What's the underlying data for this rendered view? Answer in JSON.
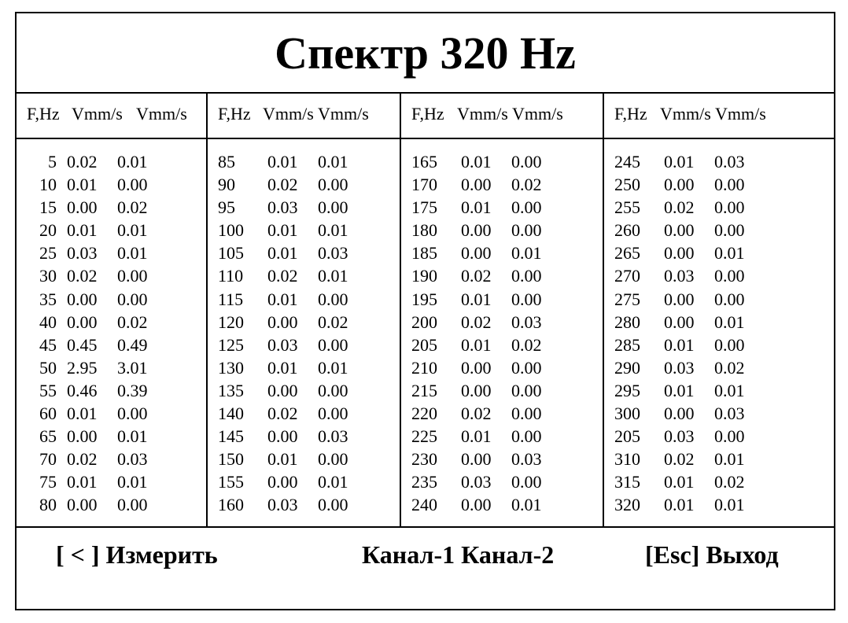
{
  "title": "Спектр 320 Hz",
  "columns": [
    {
      "header": [
        "F,Hz",
        "Vmm/s",
        "Vmm/s"
      ],
      "rows": [
        [
          "5",
          "0.02",
          "0.01"
        ],
        [
          "10",
          "0.01",
          "0.00"
        ],
        [
          "15",
          "0.00",
          "0.02"
        ],
        [
          "20",
          "0.01",
          "0.01"
        ],
        [
          "25",
          "0.03",
          "0.01"
        ],
        [
          "30",
          "0.02",
          "0.00"
        ],
        [
          "35",
          "0.00",
          "0.00"
        ],
        [
          "40",
          "0.00",
          "0.02"
        ],
        [
          "45",
          "0.45",
          "0.49"
        ],
        [
          "50",
          "2.95",
          "3.01"
        ],
        [
          "55",
          "0.46",
          "0.39"
        ],
        [
          "60",
          "0.01",
          "0.00"
        ],
        [
          "65",
          "0.00",
          "0.01"
        ],
        [
          "70",
          "0.02",
          "0.03"
        ],
        [
          "75",
          "0.01",
          "0.01"
        ],
        [
          "80",
          "0.00",
          "0.00"
        ]
      ]
    },
    {
      "header": [
        "F,Hz",
        "Vmm/s",
        "Vmm/s"
      ],
      "rows": [
        [
          "85",
          "0.01",
          "0.01"
        ],
        [
          "90",
          "0.02",
          "0.00"
        ],
        [
          "95",
          "0.03",
          "0.00"
        ],
        [
          "100",
          "0.01",
          "0.01"
        ],
        [
          "105",
          "0.01",
          "0.03"
        ],
        [
          "110",
          "0.02",
          "0.01"
        ],
        [
          "115",
          "0.01",
          "0.00"
        ],
        [
          "120",
          "0.00",
          "0.02"
        ],
        [
          "125",
          "0.03",
          "0.00"
        ],
        [
          "130",
          "0.01",
          "0.01"
        ],
        [
          "135",
          "0.00",
          "0.00"
        ],
        [
          "140",
          "0.02",
          "0.00"
        ],
        [
          "145",
          "0.00",
          "0.03"
        ],
        [
          "150",
          "0.01",
          "0.00"
        ],
        [
          "155",
          "0.00",
          "0.01"
        ],
        [
          "160",
          "0.03",
          "0.00"
        ]
      ]
    },
    {
      "header": [
        "F,Hz",
        "Vmm/s",
        "Vmm/s"
      ],
      "rows": [
        [
          "165",
          "0.01",
          "0.00"
        ],
        [
          "170",
          "0.00",
          "0.02"
        ],
        [
          "175",
          "0.01",
          "0.00"
        ],
        [
          "180",
          "0.00",
          "0.00"
        ],
        [
          "185",
          "0.00",
          "0.01"
        ],
        [
          "190",
          "0.02",
          "0.00"
        ],
        [
          "195",
          "0.01",
          "0.00"
        ],
        [
          "200",
          "0.02",
          "0.03"
        ],
        [
          "205",
          "0.01",
          "0.02"
        ],
        [
          "210",
          "0.00",
          "0.00"
        ],
        [
          "215",
          "0.00",
          "0.00"
        ],
        [
          "220",
          "0.02",
          "0.00"
        ],
        [
          "225",
          "0.01",
          "0.00"
        ],
        [
          "230",
          "0.00",
          "0.03"
        ],
        [
          "235",
          "0.03",
          "0.00"
        ],
        [
          "240",
          "0.00",
          "0.01"
        ]
      ]
    },
    {
      "header": [
        "F,Hz",
        "Vmm/s",
        "Vmm/s"
      ],
      "rows": [
        [
          "245",
          "0.01",
          "0.03"
        ],
        [
          "250",
          "0.00",
          "0.00"
        ],
        [
          "255",
          "0.02",
          "0.00"
        ],
        [
          "260",
          "0.00",
          "0.00"
        ],
        [
          "265",
          "0.00",
          "0.01"
        ],
        [
          "270",
          "0.03",
          "0.00"
        ],
        [
          "275",
          "0.00",
          "0.00"
        ],
        [
          "280",
          "0.00",
          "0.01"
        ],
        [
          "285",
          "0.01",
          "0.00"
        ],
        [
          "290",
          "0.03",
          "0.02"
        ],
        [
          "295",
          "0.01",
          "0.01"
        ],
        [
          "300",
          "0.00",
          "0.03"
        ],
        [
          "205",
          "0.03",
          "0.00"
        ],
        [
          "310",
          "0.02",
          "0.01"
        ],
        [
          "315",
          "0.01",
          "0.02"
        ],
        [
          "320",
          "0.01",
          "0.01"
        ]
      ]
    }
  ],
  "footer": {
    "measure": "[ < ] Измерить",
    "channels": "Канал-1 Канал-2",
    "exit": "[Esc] Выход"
  }
}
